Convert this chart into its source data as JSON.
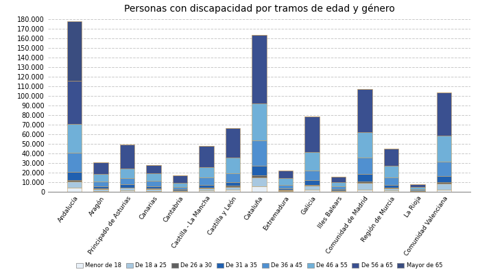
{
  "title": "Personas con discapacidad por tramos de edad y género",
  "categories": [
    "Andalucía",
    "Aragón",
    "Principado de Asturias",
    "Canarias",
    "Cantabria",
    "Castilla - La Mancha",
    "Castilla y León",
    "Cataluña",
    "Extremadura",
    "Galicia",
    "Illes Balears",
    "Comunidad de Madrid",
    "Región de Murcia",
    "La Rioja",
    "Comunidad Valenciana"
  ],
  "age_groups": [
    "Menor de 18",
    "De 18 a 25",
    "De 26 a 30",
    "De 31 a 35",
    "De 36 a 45",
    "De 46 a 55",
    "De 56 a 65",
    "Mayor de 65"
  ],
  "colors": [
    "#e8f0f8",
    "#a8c8e0",
    "#606060",
    "#2060b0",
    "#5090d0",
    "#70b0d8",
    "#3a5090",
    "#3a4d80"
  ],
  "chart_data": [
    [
      4500,
      6500,
      1000,
      9000,
      20000,
      30000,
      45000,
      62000
    ],
    [
      1000,
      2000,
      400,
      2500,
      5000,
      8000,
      12000,
      0
    ],
    [
      1500,
      2500,
      600,
      3000,
      7000,
      10000,
      25000,
      0
    ],
    [
      1000,
      2000,
      400,
      2500,
      5500,
      8000,
      8500,
      0
    ],
    [
      400,
      1000,
      250,
      1200,
      2500,
      4000,
      7500,
      0
    ],
    [
      1200,
      2500,
      600,
      3000,
      7500,
      11000,
      22000,
      0
    ],
    [
      1800,
      3500,
      800,
      4000,
      9500,
      16000,
      31000,
      0
    ],
    [
      6000,
      9000,
      1800,
      10000,
      27000,
      38000,
      72000,
      0
    ],
    [
      500,
      1200,
      300,
      1500,
      4000,
      6500,
      8000,
      0
    ],
    [
      2000,
      4500,
      900,
      5000,
      10000,
      19000,
      37000,
      0
    ],
    [
      400,
      1000,
      250,
      1200,
      3000,
      4000,
      6000,
      0
    ],
    [
      2500,
      7000,
      1500,
      7500,
      17000,
      27000,
      45000,
      0
    ],
    [
      1200,
      2500,
      600,
      3000,
      8000,
      12000,
      18000,
      0
    ],
    [
      250,
      500,
      100,
      600,
      1200,
      2000,
      3500,
      0
    ],
    [
      2500,
      6000,
      1200,
      7000,
      15000,
      27000,
      45000,
      0
    ]
  ],
  "ylim": [
    0,
    180000
  ],
  "yticks": [
    0,
    10000,
    20000,
    30000,
    40000,
    50000,
    60000,
    70000,
    80000,
    90000,
    100000,
    110000,
    120000,
    130000,
    140000,
    150000,
    160000,
    170000,
    180000
  ],
  "ytick_labels": [
    "0",
    "10.000",
    "20.000",
    "30.000",
    "40.000",
    "50.000",
    "60.000",
    "70.000",
    "80.000",
    "90.000",
    "100.000",
    "110.000",
    "120.000",
    "130.000",
    "140.000",
    "150.000",
    "160.000",
    "170.000",
    "180.000"
  ],
  "background_color": "#ffffff",
  "bar_width": 0.55,
  "figsize": [
    7.0,
    4.0
  ],
  "dpi": 100
}
